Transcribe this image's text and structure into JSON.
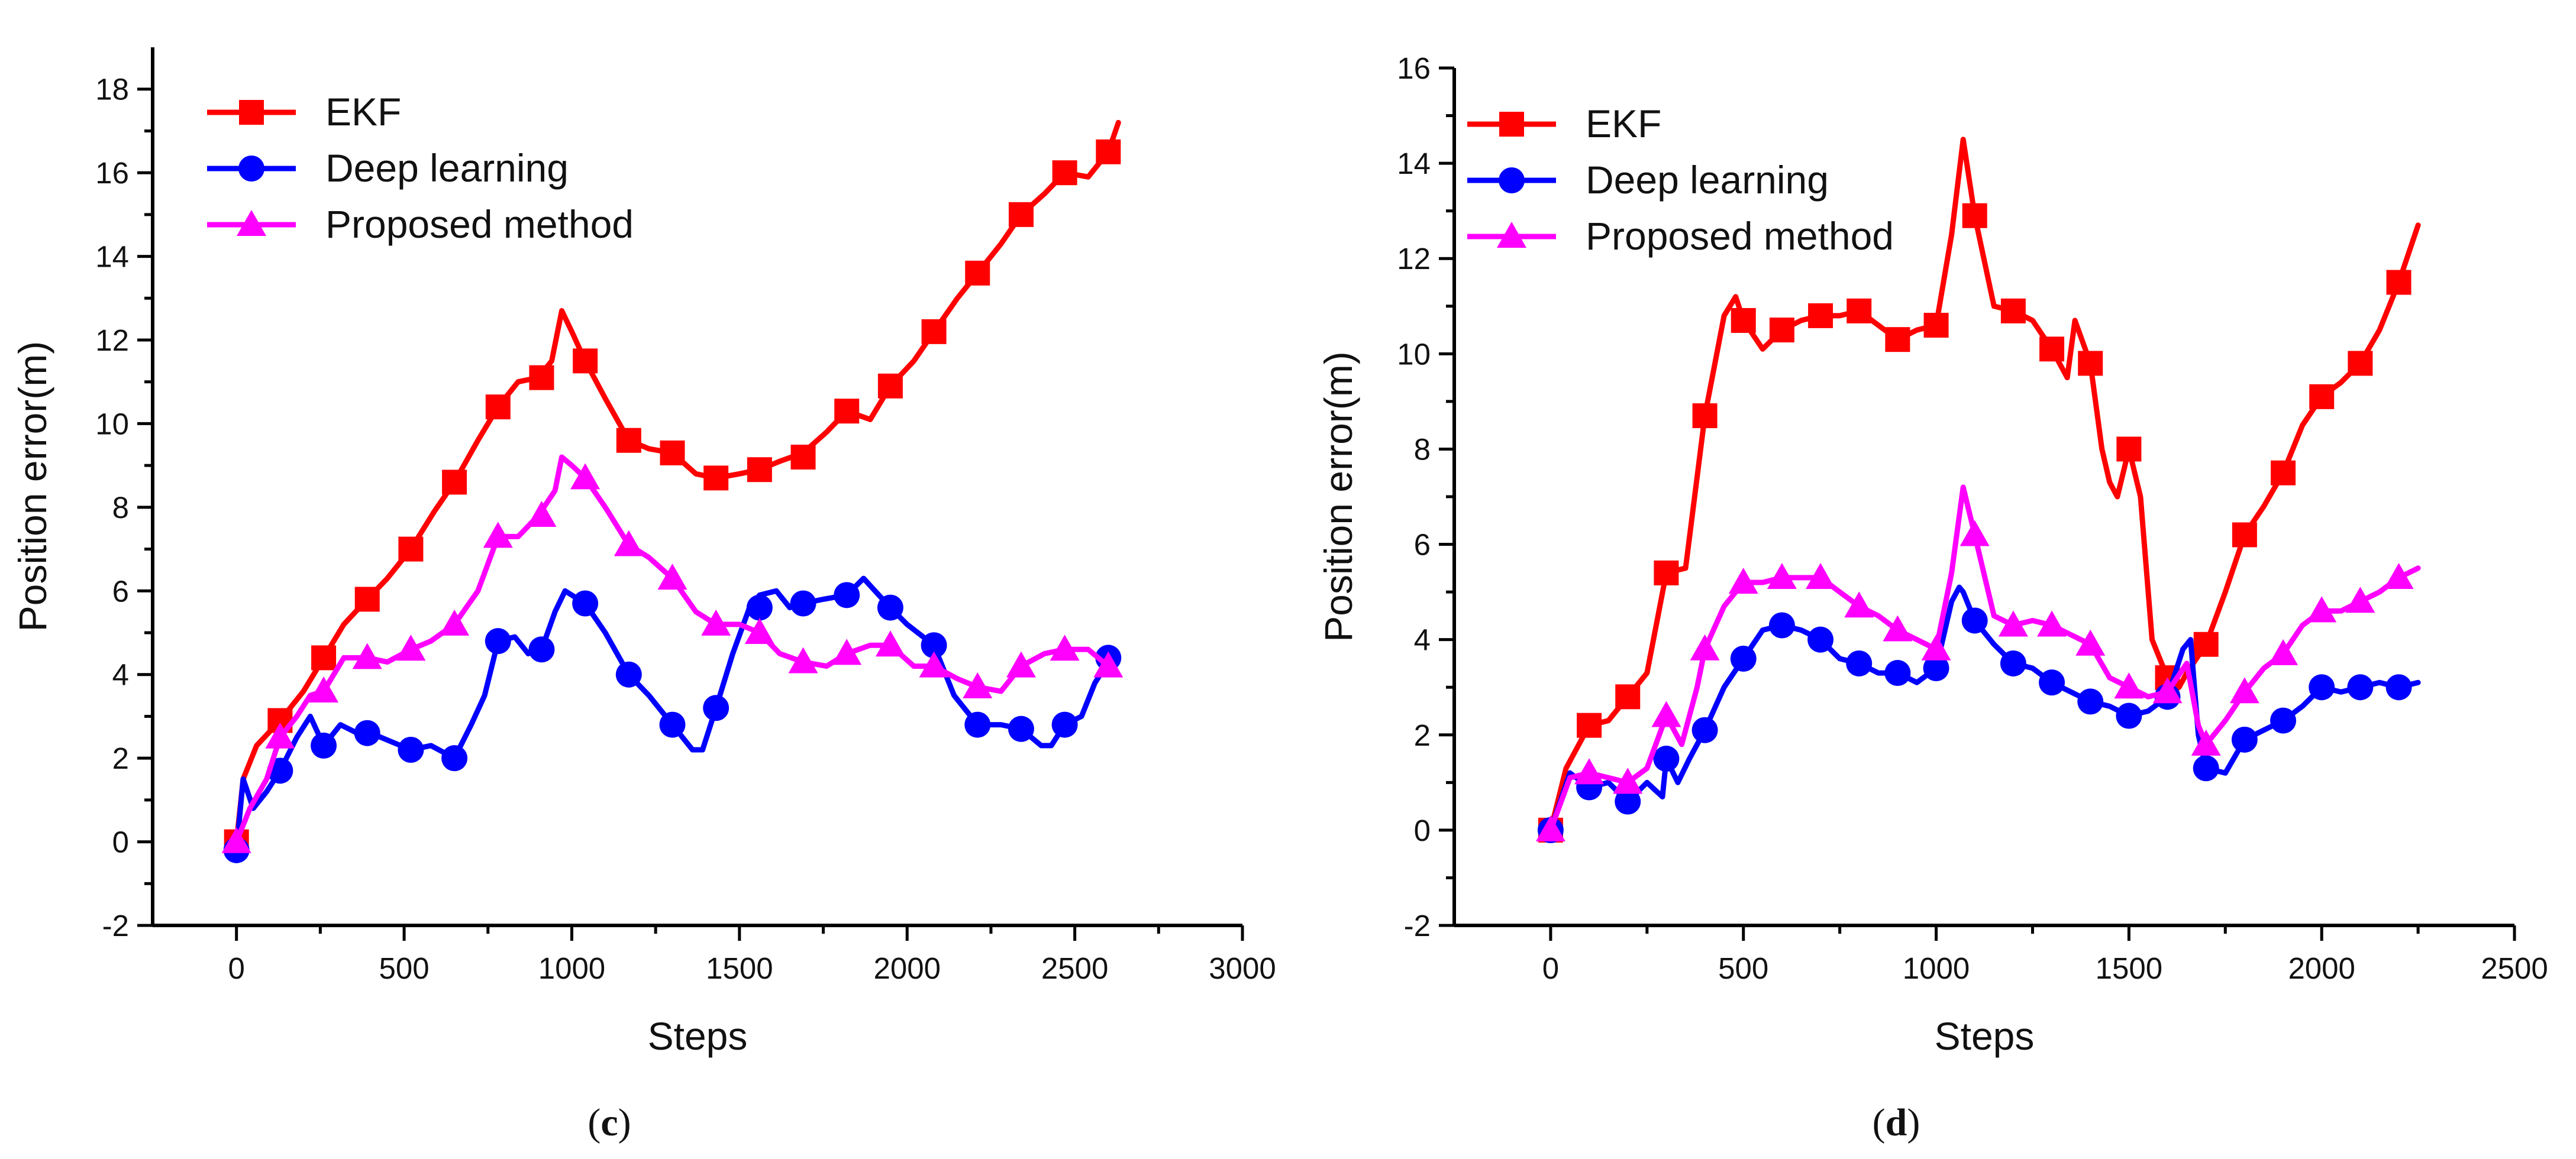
{
  "chart_data": [
    {
      "type": "line",
      "panel_label": "(c)",
      "panel_letter": "c",
      "xlabel": "Steps",
      "ylabel": "Position error(m)",
      "xlim": [
        -250,
        3000
      ],
      "ylim": [
        -2,
        19
      ],
      "xticks": [
        0,
        500,
        1000,
        1500,
        2000,
        2500,
        3000
      ],
      "yticks": [
        -2,
        0,
        2,
        4,
        6,
        8,
        10,
        12,
        14,
        16,
        18
      ],
      "legend_position": "top-left",
      "series": [
        {
          "name": "EKF",
          "color": "#ff0000",
          "marker": "square",
          "x": [
            0,
            20,
            60,
            130,
            200,
            260,
            320,
            390,
            450,
            520,
            590,
            650,
            720,
            780,
            840,
            900,
            940,
            970,
            1000,
            1040,
            1100,
            1170,
            1230,
            1300,
            1370,
            1430,
            1500,
            1560,
            1620,
            1690,
            1760,
            1820,
            1890,
            1950,
            2020,
            2080,
            2150,
            2210,
            2280,
            2340,
            2410,
            2470,
            2540,
            2600,
            2630
          ],
          "y": [
            0,
            1.5,
            2.3,
            2.9,
            3.6,
            4.4,
            5.2,
            5.8,
            6.3,
            7.0,
            7.9,
            8.6,
            9.6,
            10.4,
            11.0,
            11.1,
            11.5,
            12.7,
            12.2,
            11.5,
            10.6,
            9.6,
            9.4,
            9.3,
            8.8,
            8.7,
            8.8,
            8.9,
            9.1,
            9.3,
            9.8,
            10.3,
            10.1,
            10.9,
            11.5,
            12.2,
            13.0,
            13.6,
            14.3,
            15.0,
            15.5,
            16.0,
            15.9,
            16.5,
            17.2
          ],
          "marker_x": [
            0,
            130,
            260,
            390,
            520,
            650,
            780,
            910,
            1040,
            1170,
            1300,
            1430,
            1560,
            1690,
            1820,
            1950,
            2080,
            2210,
            2340,
            2470,
            2600
          ],
          "marker_y": [
            0,
            2.9,
            4.4,
            5.8,
            7.0,
            8.6,
            10.4,
            11.1,
            11.5,
            9.6,
            9.3,
            8.7,
            8.9,
            9.2,
            10.3,
            10.9,
            12.2,
            13.6,
            15.0,
            16.0,
            16.5
          ]
        },
        {
          "name": "Deep learning",
          "color": "#0000ff",
          "marker": "circle",
          "x": [
            0,
            20,
            50,
            90,
            130,
            180,
            220,
            260,
            310,
            360,
            400,
            460,
            520,
            580,
            650,
            700,
            740,
            780,
            830,
            870,
            910,
            950,
            980,
            1040,
            1100,
            1170,
            1230,
            1300,
            1360,
            1390,
            1430,
            1480,
            1530,
            1560,
            1610,
            1650,
            1690,
            1750,
            1820,
            1870,
            1950,
            2000,
            2080,
            2140,
            2210,
            2280,
            2340,
            2400,
            2430,
            2470,
            2520,
            2560,
            2600,
            2620
          ],
          "y": [
            -0.2,
            1.5,
            0.8,
            1.2,
            1.7,
            2.5,
            3.0,
            2.3,
            2.8,
            2.6,
            2.6,
            2.4,
            2.2,
            2.3,
            2.0,
            2.8,
            3.5,
            4.8,
            4.9,
            4.5,
            4.6,
            5.5,
            6.0,
            5.7,
            5.0,
            4.0,
            3.5,
            2.8,
            2.2,
            2.2,
            3.2,
            4.5,
            5.6,
            5.9,
            6.0,
            5.6,
            5.7,
            5.8,
            5.9,
            6.3,
            5.6,
            5.2,
            4.7,
            3.5,
            2.8,
            2.8,
            2.7,
            2.3,
            2.3,
            2.8,
            3.0,
            3.8,
            4.3,
            4.4
          ],
          "marker_x": [
            0,
            130,
            260,
            390,
            520,
            650,
            780,
            910,
            1040,
            1170,
            1300,
            1430,
            1560,
            1690,
            1820,
            1950,
            2080,
            2210,
            2340,
            2470,
            2600
          ],
          "marker_y": [
            -0.2,
            1.7,
            2.3,
            2.6,
            2.2,
            2.0,
            4.8,
            4.6,
            5.7,
            4.0,
            2.8,
            3.2,
            5.6,
            5.7,
            5.9,
            5.6,
            4.7,
            2.8,
            2.7,
            2.8,
            4.4
          ]
        },
        {
          "name": "Proposed method",
          "color": "#ff00ff",
          "marker": "triangle",
          "x": [
            0,
            40,
            90,
            130,
            180,
            220,
            260,
            320,
            390,
            450,
            520,
            580,
            650,
            720,
            780,
            840,
            900,
            950,
            970,
            1000,
            1040,
            1100,
            1170,
            1230,
            1300,
            1370,
            1430,
            1500,
            1560,
            1620,
            1690,
            1760,
            1820,
            1890,
            1950,
            2020,
            2080,
            2150,
            2210,
            2280,
            2340,
            2410,
            2470,
            2540,
            2600,
            2620
          ],
          "y": [
            0,
            0.8,
            1.5,
            2.5,
            3.0,
            3.5,
            3.6,
            4.4,
            4.4,
            4.3,
            4.6,
            4.8,
            5.2,
            6.0,
            7.3,
            7.3,
            7.8,
            8.4,
            9.2,
            9.0,
            8.7,
            8.0,
            7.1,
            6.8,
            6.3,
            5.5,
            5.2,
            5.2,
            5.0,
            4.5,
            4.3,
            4.2,
            4.5,
            4.7,
            4.7,
            4.2,
            4.2,
            3.9,
            3.7,
            3.6,
            4.2,
            4.5,
            4.6,
            4.6,
            4.2,
            4.1
          ],
          "marker_x": [
            0,
            130,
            260,
            390,
            520,
            650,
            780,
            910,
            1040,
            1170,
            1300,
            1430,
            1560,
            1690,
            1820,
            1950,
            2080,
            2210,
            2340,
            2470,
            2600
          ],
          "marker_y": [
            0,
            2.5,
            3.6,
            4.4,
            4.6,
            5.2,
            7.3,
            7.8,
            8.7,
            7.1,
            6.3,
            5.2,
            5.0,
            4.3,
            4.5,
            4.7,
            4.2,
            3.7,
            4.2,
            4.6,
            4.2
          ]
        }
      ]
    },
    {
      "type": "line",
      "panel_label": "(d)",
      "panel_letter": "d",
      "xlabel": "Steps",
      "ylabel": "Position error(m)",
      "xlim": [
        -250,
        2500
      ],
      "ylim": [
        -2,
        16
      ],
      "xticks": [
        0,
        500,
        1000,
        1500,
        2000,
        2500
      ],
      "yticks": [
        -2,
        0,
        2,
        4,
        6,
        8,
        10,
        12,
        14,
        16
      ],
      "legend_position": "top-left",
      "series": [
        {
          "name": "EKF",
          "color": "#ff0000",
          "marker": "square",
          "x": [
            0,
            40,
            100,
            150,
            200,
            250,
            300,
            350,
            400,
            450,
            480,
            500,
            550,
            600,
            650,
            700,
            750,
            800,
            850,
            900,
            950,
            1000,
            1040,
            1070,
            1100,
            1150,
            1200,
            1250,
            1300,
            1340,
            1360,
            1400,
            1430,
            1450,
            1470,
            1500,
            1530,
            1560,
            1600,
            1630,
            1650,
            1700,
            1750,
            1800,
            1850,
            1900,
            1950,
            2000,
            2050,
            2100,
            2150,
            2200,
            2250
          ],
          "y": [
            0,
            1.3,
            2.2,
            2.3,
            2.8,
            3.3,
            5.4,
            5.5,
            8.7,
            10.8,
            11.2,
            10.7,
            10.1,
            10.5,
            10.7,
            10.8,
            10.8,
            10.9,
            10.6,
            10.3,
            10.5,
            10.6,
            12.5,
            14.5,
            12.9,
            11.0,
            10.9,
            10.7,
            10.1,
            9.5,
            10.7,
            9.8,
            8.0,
            7.3,
            7.0,
            8.0,
            7.0,
            4.0,
            3.2,
            3.0,
            3.3,
            3.9,
            5.0,
            6.2,
            6.8,
            7.5,
            8.5,
            9.1,
            9.4,
            9.8,
            10.5,
            11.5,
            12.7
          ],
          "marker_x": [
            0,
            100,
            200,
            300,
            400,
            500,
            600,
            700,
            800,
            900,
            1000,
            1100,
            1200,
            1300,
            1400,
            1500,
            1600,
            1700,
            1800,
            1900,
            2000,
            2100,
            2200
          ],
          "marker_y": [
            0,
            2.2,
            2.8,
            5.4,
            8.7,
            10.7,
            10.5,
            10.8,
            10.9,
            10.3,
            10.6,
            12.9,
            10.9,
            10.1,
            9.8,
            8.0,
            3.2,
            3.9,
            6.2,
            7.5,
            9.1,
            9.8,
            11.5
          ]
        },
        {
          "name": "Deep learning",
          "color": "#0000ff",
          "marker": "circle",
          "x": [
            0,
            50,
            100,
            150,
            200,
            250,
            290,
            300,
            330,
            360,
            400,
            450,
            500,
            550,
            600,
            650,
            700,
            750,
            800,
            850,
            900,
            950,
            1000,
            1040,
            1060,
            1070,
            1100,
            1150,
            1200,
            1250,
            1300,
            1350,
            1400,
            1450,
            1500,
            1550,
            1600,
            1640,
            1660,
            1680,
            1700,
            1750,
            1800,
            1850,
            1900,
            1950,
            2000,
            2050,
            2100,
            2150,
            2200,
            2250
          ],
          "y": [
            0,
            1.2,
            0.9,
            1.0,
            0.6,
            1.0,
            0.7,
            1.5,
            1.0,
            1.5,
            2.1,
            3.0,
            3.6,
            4.2,
            4.3,
            4.2,
            4.0,
            3.6,
            3.5,
            3.3,
            3.3,
            3.1,
            3.4,
            4.8,
            5.1,
            5.0,
            4.4,
            3.9,
            3.5,
            3.4,
            3.1,
            2.9,
            2.7,
            2.6,
            2.4,
            2.5,
            2.8,
            3.8,
            4.0,
            2.0,
            1.3,
            1.2,
            1.9,
            2.1,
            2.3,
            2.6,
            3.0,
            2.9,
            3.0,
            3.1,
            3.0,
            3.1
          ],
          "marker_x": [
            0,
            100,
            200,
            300,
            400,
            500,
            600,
            700,
            800,
            900,
            1000,
            1100,
            1200,
            1300,
            1400,
            1500,
            1600,
            1700,
            1800,
            1900,
            2000,
            2100,
            2200
          ],
          "marker_y": [
            0,
            0.9,
            0.6,
            1.5,
            2.1,
            3.6,
            4.3,
            4.0,
            3.5,
            3.3,
            3.4,
            4.4,
            3.5,
            3.1,
            2.7,
            2.4,
            2.8,
            1.3,
            1.9,
            2.3,
            3.0,
            3.0,
            3.0
          ]
        },
        {
          "name": "Proposed method",
          "color": "#ff00ff",
          "marker": "triangle",
          "x": [
            0,
            50,
            100,
            150,
            200,
            250,
            300,
            340,
            380,
            400,
            450,
            500,
            550,
            600,
            650,
            700,
            750,
            800,
            850,
            900,
            950,
            1000,
            1040,
            1070,
            1100,
            1150,
            1200,
            1250,
            1300,
            1350,
            1400,
            1450,
            1500,
            1550,
            1600,
            1650,
            1680,
            1700,
            1750,
            1800,
            1850,
            1900,
            1950,
            2000,
            2050,
            2100,
            2150,
            2200,
            2250
          ],
          "y": [
            0,
            1.1,
            1.2,
            1.1,
            1.0,
            1.3,
            2.4,
            1.8,
            3.0,
            3.8,
            4.7,
            5.2,
            5.2,
            5.3,
            5.3,
            5.3,
            5.0,
            4.7,
            4.5,
            4.2,
            4.0,
            3.8,
            5.4,
            7.2,
            6.2,
            4.5,
            4.3,
            4.4,
            4.3,
            4.1,
            3.9,
            3.2,
            3.0,
            2.8,
            2.9,
            3.5,
            2.2,
            1.8,
            2.3,
            2.9,
            3.4,
            3.7,
            4.3,
            4.6,
            4.6,
            4.8,
            5.0,
            5.3,
            5.5
          ],
          "marker_x": [
            0,
            100,
            200,
            300,
            400,
            500,
            600,
            700,
            800,
            900,
            1000,
            1100,
            1200,
            1300,
            1400,
            1500,
            1600,
            1700,
            1800,
            1900,
            2000,
            2100,
            2200
          ],
          "marker_y": [
            0,
            1.2,
            1.0,
            2.4,
            3.8,
            5.2,
            5.3,
            5.3,
            4.7,
            4.2,
            3.8,
            6.2,
            4.3,
            4.3,
            3.9,
            3.0,
            2.9,
            1.8,
            2.9,
            3.7,
            4.6,
            4.8,
            5.3
          ]
        }
      ]
    }
  ]
}
